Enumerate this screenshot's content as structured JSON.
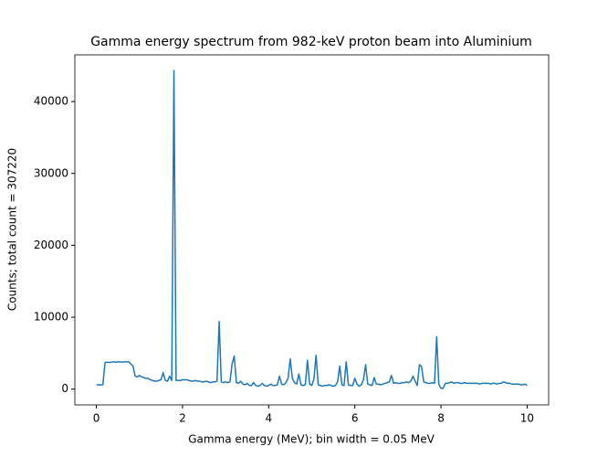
{
  "chart_data": {
    "type": "line",
    "title": "Gamma energy spectrum from 982-keV proton beam into Aluminium",
    "x_label": "Gamma energy (MeV); bin width = 0.05 MeV",
    "y_label": "Counts; total count = 307220",
    "x": [
      0,
      0.05,
      0.1,
      0.15,
      0.2,
      0.25,
      0.3,
      0.35,
      0.4,
      0.45,
      0.5,
      0.55,
      0.6,
      0.65,
      0.7,
      0.75,
      0.8,
      0.85,
      0.9,
      0.95,
      1,
      1.05,
      1.1,
      1.15,
      1.2,
      1.25,
      1.3,
      1.35,
      1.4,
      1.45,
      1.5,
      1.55,
      1.6,
      1.65,
      1.7,
      1.75,
      1.8,
      1.85,
      1.9,
      1.95,
      2,
      2.05,
      2.1,
      2.15,
      2.2,
      2.25,
      2.3,
      2.35,
      2.4,
      2.45,
      2.5,
      2.55,
      2.6,
      2.65,
      2.7,
      2.75,
      2.8,
      2.85,
      2.9,
      2.95,
      3,
      3.05,
      3.1,
      3.15,
      3.2,
      3.25,
      3.3,
      3.35,
      3.4,
      3.45,
      3.5,
      3.55,
      3.6,
      3.65,
      3.7,
      3.75,
      3.8,
      3.85,
      3.9,
      3.95,
      4,
      4.05,
      4.1,
      4.15,
      4.2,
      4.25,
      4.3,
      4.35,
      4.4,
      4.45,
      4.5,
      4.55,
      4.6,
      4.65,
      4.7,
      4.75,
      4.8,
      4.85,
      4.9,
      4.95,
      5,
      5.05,
      5.1,
      5.15,
      5.2,
      5.25,
      5.3,
      5.35,
      5.4,
      5.45,
      5.5,
      5.55,
      5.6,
      5.65,
      5.7,
      5.75,
      5.8,
      5.85,
      5.9,
      5.95,
      6,
      6.05,
      6.1,
      6.15,
      6.2,
      6.25,
      6.3,
      6.35,
      6.4,
      6.45,
      6.5,
      6.55,
      6.6,
      6.65,
      6.7,
      6.75,
      6.8,
      6.85,
      6.9,
      6.95,
      7,
      7.05,
      7.1,
      7.15,
      7.2,
      7.25,
      7.3,
      7.35,
      7.4,
      7.45,
      7.5,
      7.55,
      7.6,
      7.65,
      7.7,
      7.75,
      7.8,
      7.85,
      7.9,
      7.95,
      8,
      8.05,
      8.1,
      8.15,
      8.2,
      8.25,
      8.3,
      8.35,
      8.4,
      8.45,
      8.5,
      8.55,
      8.6,
      8.65,
      8.7,
      8.75,
      8.8,
      8.85,
      8.9,
      8.95,
      9,
      9.05,
      9.1,
      9.15,
      9.2,
      9.25,
      9.3,
      9.35,
      9.4,
      9.45,
      9.5,
      9.55,
      9.6,
      9.65,
      9.7,
      9.75,
      9.8,
      9.85,
      9.9,
      9.95,
      10
    ],
    "series": [
      {
        "color": "#1f77b4",
        "values": [
          600,
          600,
          600,
          600,
          3700,
          3750,
          3700,
          3750,
          3800,
          3750,
          3800,
          3800,
          3750,
          3800,
          3800,
          3800,
          3500,
          3200,
          1800,
          1700,
          1900,
          1700,
          1600,
          1500,
          1500,
          1300,
          1200,
          1100,
          1100,
          1200,
          1300,
          2300,
          1200,
          1100,
          1800,
          1200,
          44300,
          1200,
          1200,
          1200,
          1300,
          1300,
          1300,
          1200,
          1100,
          1100,
          1200,
          1100,
          1100,
          1000,
          1000,
          1100,
          1000,
          900,
          1000,
          1000,
          1100,
          9400,
          1000,
          900,
          1000,
          900,
          1000,
          3500,
          4600,
          900,
          800,
          1100,
          700,
          600,
          800,
          500,
          500,
          900,
          500,
          400,
          500,
          800,
          500,
          400,
          500,
          700,
          500,
          500,
          600,
          1800,
          700,
          600,
          900,
          1500,
          4200,
          1500,
          900,
          700,
          2100,
          600,
          500,
          600,
          4000,
          700,
          500,
          1400,
          4700,
          600,
          500,
          400,
          500,
          500,
          600,
          500,
          400,
          500,
          1000,
          3200,
          600,
          500,
          3800,
          600,
          500,
          500,
          1500,
          700,
          400,
          600,
          1300,
          3400,
          700,
          600,
          500,
          1600,
          700,
          700,
          600,
          700,
          800,
          900,
          1000,
          1900,
          800,
          900,
          800,
          800,
          900,
          900,
          1000,
          900,
          1100,
          1800,
          1100,
          500,
          3400,
          3100,
          1000,
          900,
          800,
          800,
          900,
          800,
          7300,
          700,
          100,
          100,
          800,
          800,
          900,
          1000,
          800,
          900,
          900,
          800,
          800,
          900,
          800,
          800,
          800,
          800,
          800,
          800,
          700,
          800,
          800,
          800,
          800,
          700,
          800,
          800,
          700,
          800,
          800,
          1000,
          900,
          800,
          800,
          700,
          700,
          700,
          700,
          600,
          600,
          700,
          500
        ]
      }
    ],
    "xlim": [
      -0.5,
      10.5
    ],
    "xticks": [
      0,
      2,
      4,
      6,
      8,
      10
    ],
    "ylim": [
      -2200,
      46500
    ],
    "yticks": [
      0,
      10000,
      20000,
      30000,
      40000
    ],
    "grid": false
  }
}
